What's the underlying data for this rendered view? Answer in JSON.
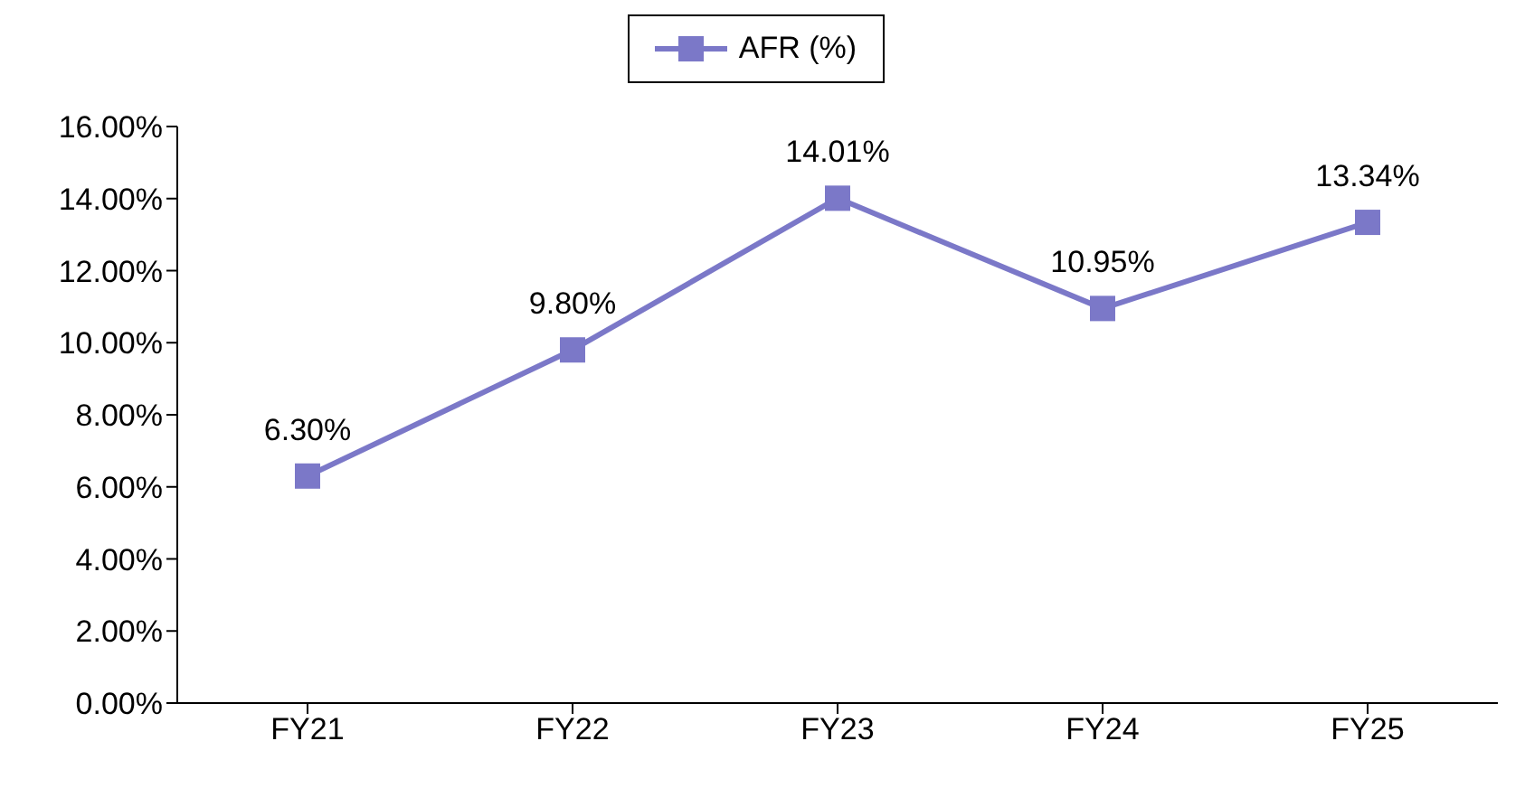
{
  "chart_data": {
    "type": "line",
    "categories": [
      "FY21",
      "FY22",
      "FY23",
      "FY24",
      "FY25"
    ],
    "series": [
      {
        "name": "AFR (%)",
        "color": "#7b78c8",
        "values": [
          6.3,
          9.8,
          14.01,
          10.95,
          13.34
        ],
        "value_labels": [
          "6.30%",
          "9.80%",
          "14.01%",
          "10.95%",
          "13.34%"
        ]
      }
    ],
    "ylim": [
      0,
      16
    ],
    "yticks": [
      {
        "value": 0,
        "label": "0.00%"
      },
      {
        "value": 2,
        "label": "2.00%"
      },
      {
        "value": 4,
        "label": "4.00%"
      },
      {
        "value": 6,
        "label": "6.00%"
      },
      {
        "value": 8,
        "label": "8.00%"
      },
      {
        "value": 10,
        "label": "10.00%"
      },
      {
        "value": 12,
        "label": "12.00%"
      },
      {
        "value": 14,
        "label": "14.00%"
      },
      {
        "value": 16,
        "label": "16.00%"
      }
    ],
    "grid": false,
    "legend": "top",
    "marker": "square",
    "line_style": "solid"
  }
}
